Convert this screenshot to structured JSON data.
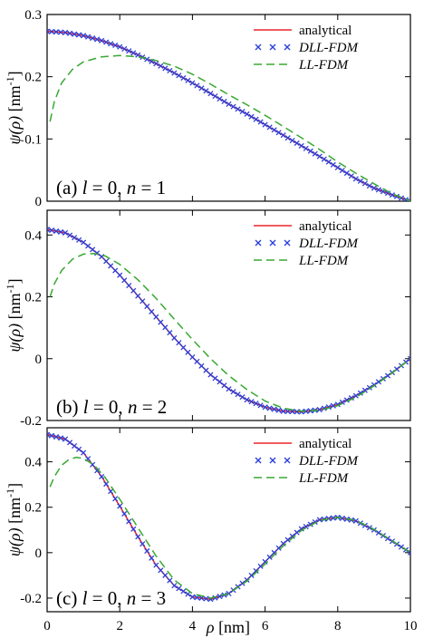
{
  "legend": {
    "entries": [
      "analytical",
      "DLL-FDM",
      "LL-FDM"
    ]
  },
  "shared_xlabel": {
    "symbol": "ρ",
    "unit": "[nm]"
  },
  "colors": {
    "analytical": "#e8262a",
    "dll": "#2a3fd9",
    "ll": "#38a832",
    "axis": "#000000"
  },
  "chart_data": [
    {
      "type": "line",
      "panel_label": {
        "prefix": "(a) ",
        "l": "l",
        "l_val": " = 0, ",
        "n": "n",
        "n_val": " = 1"
      },
      "ylabel": {
        "symbol": "ψ(ρ)",
        "unit_prefix": " [nm",
        "unit_sup": "-1",
        "unit_suffix": "]"
      },
      "xlim": [
        0,
        10
      ],
      "ylim": [
        0,
        0.3
      ],
      "yticks": [
        0,
        0.1,
        0.2,
        0.3
      ],
      "ytick_labels": [
        "0",
        "0.1",
        "0.2",
        "0.3"
      ],
      "xticks": [
        0,
        2,
        4,
        6,
        8,
        10
      ],
      "xtick_labels": [],
      "series": [
        {
          "name": "analytical",
          "style": "line",
          "x": [
            0,
            0.5,
            1,
            1.5,
            2,
            2.5,
            3,
            3.5,
            4,
            4.5,
            5,
            5.5,
            6,
            6.5,
            7,
            7.5,
            8,
            8.5,
            9,
            9.5,
            10
          ],
          "y": [
            0.273,
            0.271,
            0.266,
            0.258,
            0.248,
            0.235,
            0.221,
            0.206,
            0.19,
            0.173,
            0.156,
            0.14,
            0.123,
            0.106,
            0.089,
            0.072,
            0.054,
            0.036,
            0.021,
            0.01,
            0
          ]
        },
        {
          "name": "DLL-FDM",
          "style": "x",
          "x": [
            0,
            0.5,
            1,
            1.5,
            2,
            2.5,
            3,
            3.5,
            4,
            4.5,
            5,
            5.5,
            6,
            6.5,
            7,
            7.5,
            8,
            8.5,
            9,
            9.5,
            10
          ],
          "y": [
            0.273,
            0.271,
            0.266,
            0.258,
            0.248,
            0.235,
            0.221,
            0.206,
            0.19,
            0.173,
            0.156,
            0.14,
            0.123,
            0.106,
            0.089,
            0.072,
            0.054,
            0.036,
            0.021,
            0.01,
            0
          ]
        },
        {
          "name": "LL-FDM",
          "style": "dash",
          "x": [
            0.08,
            0.2,
            0.4,
            0.7,
            1,
            1.5,
            2,
            2.5,
            3,
            3.5,
            4,
            4.5,
            5,
            5.5,
            6,
            6.5,
            7,
            7.5,
            8,
            8.5,
            9,
            9.5,
            10
          ],
          "y": [
            0.128,
            0.16,
            0.19,
            0.212,
            0.224,
            0.232,
            0.234,
            0.232,
            0.226,
            0.217,
            0.204,
            0.188,
            0.171,
            0.155,
            0.138,
            0.12,
            0.102,
            0.083,
            0.063,
            0.045,
            0.028,
            0.012,
            0
          ]
        }
      ]
    },
    {
      "type": "line",
      "panel_label": {
        "prefix": "(b) ",
        "l": "l",
        "l_val": " = 0, ",
        "n": "n",
        "n_val": " = 2"
      },
      "ylabel": {
        "symbol": "ψ(ρ)",
        "unit_prefix": " [nm",
        "unit_sup": "-1",
        "unit_suffix": "]"
      },
      "xlim": [
        0,
        10
      ],
      "ylim": [
        -0.2,
        0.48
      ],
      "yticks": [
        -0.2,
        0,
        0.2,
        0.4
      ],
      "ytick_labels": [
        "-0.2",
        "0",
        "0.2",
        "0.4"
      ],
      "xticks": [
        0,
        2,
        4,
        6,
        8,
        10
      ],
      "xtick_labels": [],
      "series": [
        {
          "name": "analytical",
          "style": "line",
          "x": [
            0,
            0.5,
            1,
            1.5,
            2,
            2.5,
            3,
            3.5,
            4,
            4.5,
            5,
            5.5,
            6,
            6.5,
            7,
            7.5,
            8,
            8.5,
            9,
            9.5,
            10
          ],
          "y": [
            0.418,
            0.407,
            0.376,
            0.33,
            0.27,
            0.203,
            0.135,
            0.067,
            0.005,
            -0.052,
            -0.098,
            -0.133,
            -0.157,
            -0.17,
            -0.172,
            -0.165,
            -0.148,
            -0.12,
            -0.085,
            -0.045,
            0
          ]
        },
        {
          "name": "DLL-FDM",
          "style": "x",
          "x": [
            0,
            0.5,
            1,
            1.5,
            2,
            2.5,
            3,
            3.5,
            4,
            4.5,
            5,
            5.5,
            6,
            6.5,
            7,
            7.5,
            8,
            8.5,
            9,
            9.5,
            10
          ],
          "y": [
            0.418,
            0.407,
            0.376,
            0.33,
            0.27,
            0.203,
            0.135,
            0.067,
            0.005,
            -0.052,
            -0.098,
            -0.133,
            -0.157,
            -0.17,
            -0.172,
            -0.165,
            -0.148,
            -0.12,
            -0.085,
            -0.045,
            0
          ]
        },
        {
          "name": "LL-FDM",
          "style": "dash",
          "x": [
            0.08,
            0.2,
            0.4,
            0.7,
            1,
            1.3,
            1.6,
            2,
            2.5,
            3,
            3.5,
            4,
            4.5,
            5,
            5.5,
            6,
            6.5,
            7,
            7.5,
            8,
            8.5,
            9,
            9.5,
            10
          ],
          "y": [
            0.2,
            0.242,
            0.285,
            0.322,
            0.338,
            0.34,
            0.332,
            0.305,
            0.255,
            0.195,
            0.128,
            0.062,
            0.0,
            -0.055,
            -0.1,
            -0.137,
            -0.16,
            -0.17,
            -0.167,
            -0.152,
            -0.125,
            -0.088,
            -0.046,
            0
          ]
        }
      ]
    },
    {
      "type": "line",
      "panel_label": {
        "prefix": "(c) ",
        "l": "l",
        "l_val": " = 0, ",
        "n": "n",
        "n_val": " = 3"
      },
      "ylabel": {
        "symbol": "ψ(ρ)",
        "unit_prefix": " [nm",
        "unit_sup": "-1",
        "unit_suffix": "]"
      },
      "xlim": [
        0,
        10
      ],
      "ylim": [
        -0.26,
        0.55
      ],
      "yticks": [
        -0.2,
        0,
        0.2,
        0.4
      ],
      "ytick_labels": [
        "-0.2",
        "0",
        "0.2",
        "0.4"
      ],
      "xticks": [
        0,
        2,
        4,
        6,
        8,
        10
      ],
      "xtick_labels": [
        "0",
        "2",
        "4",
        "6",
        "8",
        "10"
      ],
      "series": [
        {
          "name": "analytical",
          "style": "line",
          "x": [
            0,
            0.5,
            1,
            1.5,
            2,
            2.5,
            3,
            3.5,
            4,
            4.5,
            5,
            5.5,
            6,
            6.5,
            7,
            7.5,
            8,
            8.5,
            9,
            9.5,
            10
          ],
          "y": [
            0.52,
            0.5,
            0.44,
            0.335,
            0.205,
            0.07,
            -0.055,
            -0.145,
            -0.195,
            -0.205,
            -0.18,
            -0.12,
            -0.04,
            0.04,
            0.105,
            0.145,
            0.155,
            0.14,
            0.1,
            0.05,
            0
          ]
        },
        {
          "name": "DLL-FDM",
          "style": "x",
          "x": [
            0,
            0.5,
            1,
            1.5,
            2,
            2.5,
            3,
            3.5,
            4,
            4.5,
            5,
            5.5,
            6,
            6.5,
            7,
            7.5,
            8,
            8.5,
            9,
            9.5,
            10
          ],
          "y": [
            0.52,
            0.5,
            0.44,
            0.335,
            0.205,
            0.07,
            -0.055,
            -0.145,
            -0.195,
            -0.205,
            -0.18,
            -0.12,
            -0.04,
            0.04,
            0.105,
            0.145,
            0.155,
            0.14,
            0.1,
            0.05,
            0
          ]
        },
        {
          "name": "LL-FDM",
          "style": "dash",
          "x": [
            0.08,
            0.2,
            0.4,
            0.6,
            0.8,
            1,
            1.3,
            1.6,
            2,
            2.5,
            3,
            3.5,
            4,
            4.5,
            5,
            5.5,
            6,
            6.5,
            7,
            7.5,
            8,
            8.5,
            9,
            9.5,
            10
          ],
          "y": [
            0.29,
            0.335,
            0.385,
            0.41,
            0.42,
            0.415,
            0.385,
            0.33,
            0.235,
            0.11,
            -0.015,
            -0.12,
            -0.18,
            -0.2,
            -0.18,
            -0.125,
            -0.05,
            0.03,
            0.098,
            0.142,
            0.155,
            0.142,
            0.102,
            0.052,
            0
          ]
        }
      ]
    }
  ]
}
